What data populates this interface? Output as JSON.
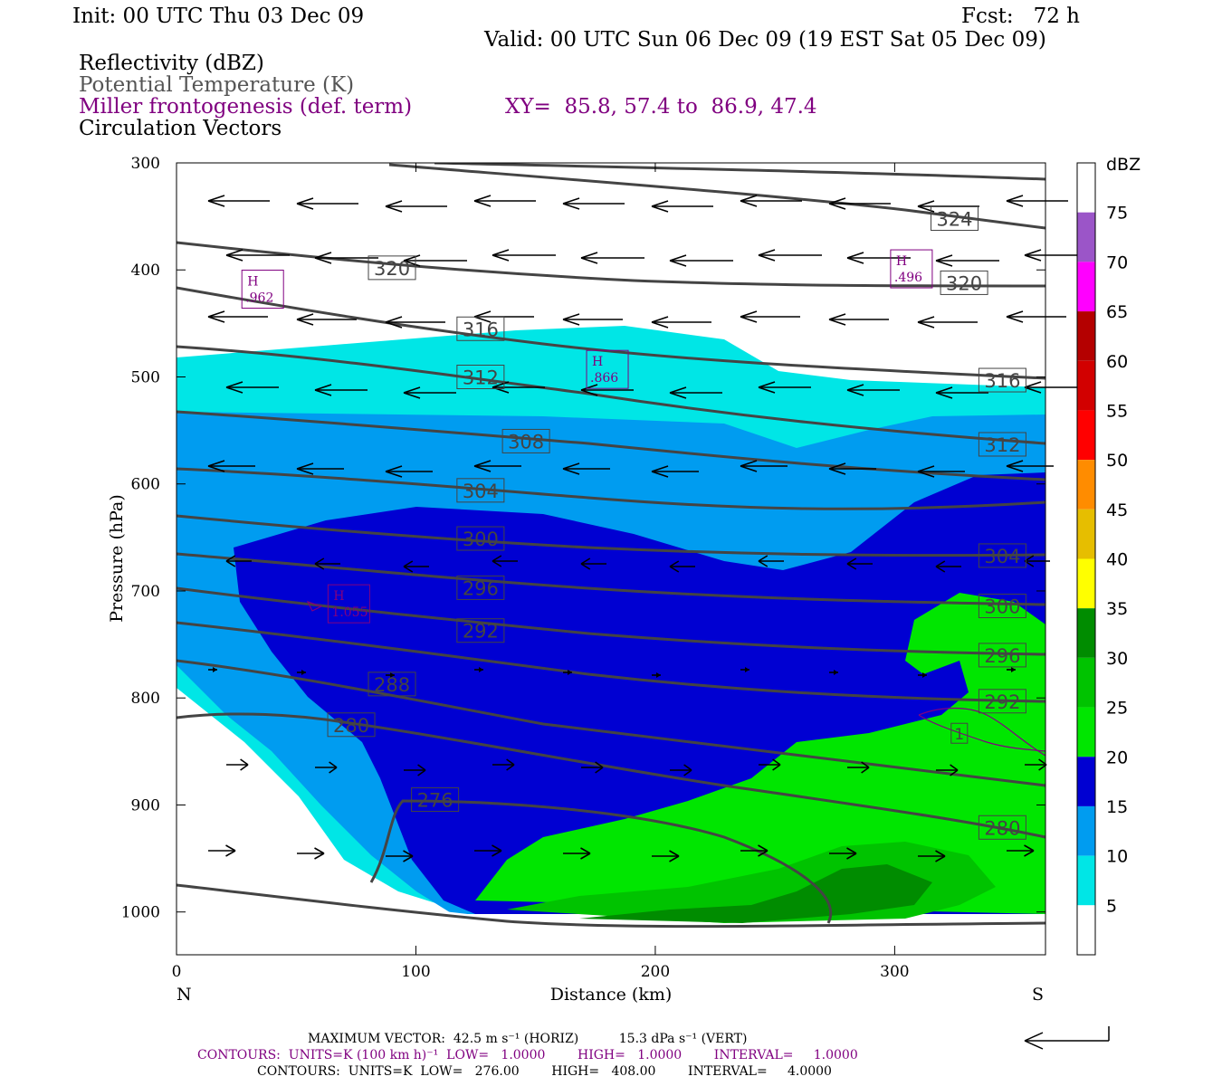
{
  "header": {
    "init": "Init: 00 UTC Thu 03 Dec 09",
    "fcst": "Fcst:   72 h",
    "valid": "Valid: 00 UTC Sun 06 Dec 09 (19 EST Sat 05 Dec 09)",
    "field1": "Reflectivity (dBZ)",
    "field2": "Potential Temperature (K)",
    "field3": "Miller frontogenesis (def. term)",
    "xy": "XY=  85.8, 57.4 to  86.9, 47.4",
    "field4": "Circulation Vectors"
  },
  "colors": {
    "frontogenesis": "#800080",
    "theta": "#444444",
    "field2_text": "#555555"
  },
  "chart_data": {
    "type": "contour-cross-section",
    "xlabel": "Distance (km)",
    "ylabel": "Pressure (hPa)",
    "xlim": [
      0,
      363
    ],
    "ylim": [
      1040,
      300
    ],
    "y_scale": "linear, inverted",
    "x_ticks": [
      "0",
      "100",
      "200",
      "300"
    ],
    "y_ticks": [
      "300",
      "400",
      "500",
      "600",
      "700",
      "800",
      "900",
      "1000"
    ],
    "x_end_labels": {
      "left": "N",
      "right": "S"
    },
    "colorbar": {
      "unit": "dBZ",
      "levels": [
        "75",
        "70",
        "65",
        "60",
        "55",
        "50",
        "45",
        "40",
        "35",
        "30",
        "25",
        "20",
        "15",
        "10",
        "5"
      ],
      "colors": [
        "#ffffff",
        "#00e6e6",
        "#009cf0",
        "#0000d2",
        "#00e600",
        "#00c300",
        "#008c00",
        "#ffff00",
        "#e6be00",
        "#ff8c00",
        "#ff0000",
        "#d20000",
        "#b40000",
        "#ff00ff",
        "#9b55c8"
      ]
    },
    "theta_contour_labels": [
      {
        "label": "324",
        "x": 325,
        "p": 352
      },
      {
        "label": "320",
        "x": 90,
        "p": 398
      },
      {
        "label": "320",
        "x": 329,
        "p": 412
      },
      {
        "label": "316",
        "x": 127,
        "p": 455
      },
      {
        "label": "316",
        "x": 345,
        "p": 503
      },
      {
        "label": "312",
        "x": 127,
        "p": 500
      },
      {
        "label": "312",
        "x": 345,
        "p": 563
      },
      {
        "label": "308",
        "x": 146,
        "p": 560
      },
      {
        "label": "304",
        "x": 127,
        "p": 606
      },
      {
        "label": "304",
        "x": 345,
        "p": 667
      },
      {
        "label": "300",
        "x": 127,
        "p": 651
      },
      {
        "label": "300",
        "x": 345,
        "p": 714
      },
      {
        "label": "296",
        "x": 127,
        "p": 697
      },
      {
        "label": "296",
        "x": 345,
        "p": 760
      },
      {
        "label": "292",
        "x": 127,
        "p": 737
      },
      {
        "label": "292",
        "x": 345,
        "p": 803
      },
      {
        "label": "288",
        "x": 90,
        "p": 787
      },
      {
        "label": "280",
        "x": 73,
        "p": 825
      },
      {
        "label": "280",
        "x": 345,
        "p": 921
      },
      {
        "label": "276",
        "x": 108,
        "p": 895
      }
    ],
    "frontogenesis_maxima": [
      {
        "label": "H",
        "value": ".962",
        "x": 36,
        "p": 418
      },
      {
        "label": "H",
        "value": ".496",
        "x": 307,
        "p": 399
      },
      {
        "label": "H",
        "value": ".866",
        "x": 180,
        "p": 493
      },
      {
        "label": "H",
        "value": "1.055",
        "x": 72,
        "p": 712
      }
    ],
    "frontogenesis_contour_labels": [
      {
        "label": "1",
        "x": 327,
        "p": 833
      }
    ],
    "circulation_vectors": {
      "upper_levels": "strong easterly-directed flow (arrows pointing toward N) from 300-600 hPa",
      "mid_levels": "weak flow, small arrows, 600-800 hPa",
      "low_levels": "southward flow (arrows pointing toward S) below 800 hPa"
    }
  },
  "footer": {
    "max_vector": "MAXIMUM VECTOR:  42.5 m s⁻¹ (HORIZ)          15.3 dPa s⁻¹ (VERT)",
    "contours1": "CONTOURS:  UNITS=K (100 km h)⁻¹  LOW=   1.0000        HIGH=   1.0000        INTERVAL=     1.0000",
    "contours2": "CONTOURS:  UNITS=K  LOW=   276.00        HIGH=   408.00        INTERVAL=     4.0000"
  }
}
